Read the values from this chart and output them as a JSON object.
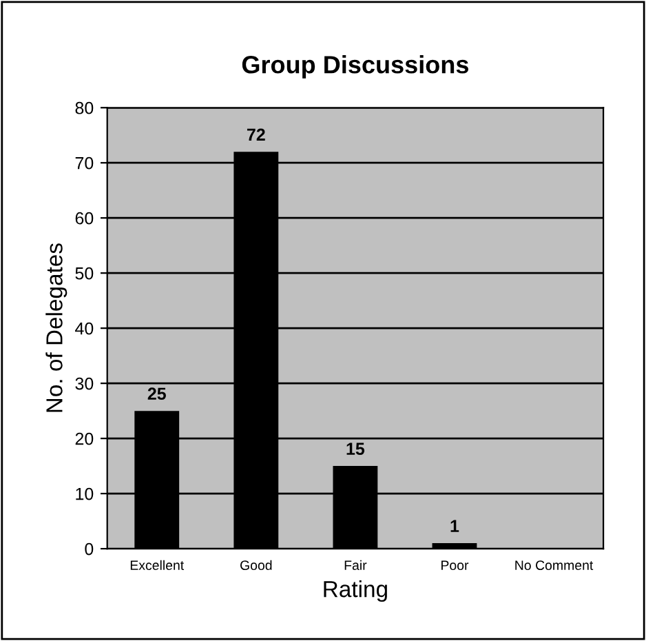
{
  "chart_data": {
    "type": "bar",
    "title": "Group Discussions",
    "xlabel": "Rating",
    "ylabel": "No. of Delegates",
    "categories": [
      "Excellent",
      "Good",
      "Fair",
      "Poor",
      "No Comment"
    ],
    "values": [
      25,
      72,
      15,
      1,
      0
    ],
    "value_labels": [
      "25",
      "72",
      "15",
      "1",
      null
    ],
    "color": "#000000",
    "ylim": [
      0,
      80
    ],
    "yticks": [
      0,
      10,
      20,
      30,
      40,
      50,
      60,
      70,
      80
    ],
    "grid": "y"
  }
}
